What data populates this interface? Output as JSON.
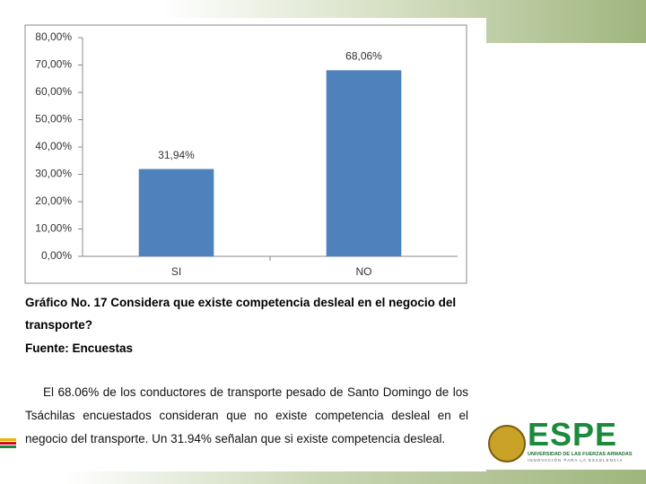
{
  "chart_data": {
    "type": "bar",
    "categories": [
      "SI",
      "NO"
    ],
    "values": [
      31.94,
      68.06
    ],
    "value_labels": [
      "31,94%",
      "68,06%"
    ],
    "color": "#4f81bd",
    "ylim": [
      0,
      80
    ],
    "yticks": [
      {
        "value": 0,
        "label": "0,00%"
      },
      {
        "value": 10,
        "label": "10,00%"
      },
      {
        "value": 20,
        "label": "20,00%"
      },
      {
        "value": 30,
        "label": "30,00%"
      },
      {
        "value": 40,
        "label": "40,00%"
      },
      {
        "value": 50,
        "label": "50,00%"
      },
      {
        "value": 60,
        "label": "60,00%"
      },
      {
        "value": 70,
        "label": "70,00%"
      },
      {
        "value": 80,
        "label": "80,00%"
      }
    ],
    "grid": false
  },
  "caption": {
    "title": "Gráfico No. 17 Considera que existe competencia desleal en el negocio del transporte?",
    "source": "Fuente: Encuestas"
  },
  "body": "El 68.06% de los conductores de transporte pesado de Santo Domingo de los Tsáchilas encuestados consideran que no existe competencia desleal en el negocio del transporte. Un 31.94% señalan que si existe competencia desleal.",
  "logo": {
    "name": "ESPE",
    "line1": "UNIVERSIDAD DE LAS FUERZAS ARMADAS",
    "line2": "INNOVACIÓN PARA LA EXCELENCIA"
  }
}
